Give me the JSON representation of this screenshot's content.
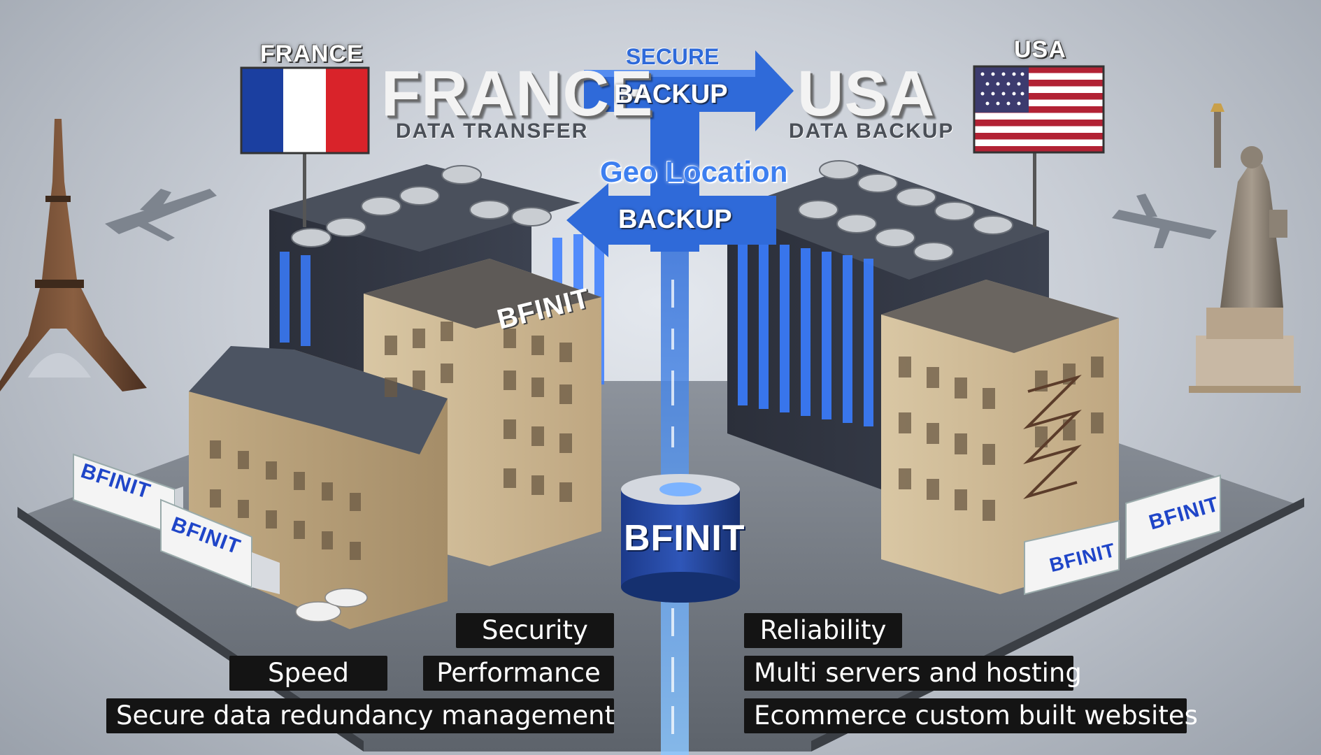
{
  "flags": {
    "france_caption": "FRANCE",
    "usa_caption": "USA",
    "france_colors": [
      "#1b3fa0",
      "#ffffff",
      "#d9232a"
    ],
    "usa_colors": [
      "#b22234",
      "#ffffff",
      "#3c3b6e"
    ]
  },
  "titles": {
    "france_title": "FRANCE",
    "france_subtitle": "DATA TRANSFER",
    "usa_title": "USA",
    "usa_subtitle": "DATA BACKUP"
  },
  "arrows": {
    "secure_label": "SECURE",
    "backup_label": "BACKUP",
    "geo_label": "Geo Location",
    "return_label": "BACKUP",
    "arrow_color": "#2f6ad9"
  },
  "brand": {
    "building_sign": "BFINIT",
    "cylinder": "BFINIT",
    "truck_1": "BFINIT",
    "truck_2": "BFINIT",
    "truck_3": "BFINIT",
    "truck_4": "BFINIT"
  },
  "features": {
    "security": "Security",
    "reliability": "Reliability",
    "speed": "Speed",
    "performance": "Performance",
    "multi_servers": "Multi servers and hosting",
    "redundancy": "Secure data redundancy management",
    "ecommerce": "Ecommerce custom built websites"
  },
  "icons": {
    "left_landmark": "eiffel-tower-icon",
    "right_landmark": "statue-of-liberty-icon",
    "plane": "airplane-icon"
  }
}
